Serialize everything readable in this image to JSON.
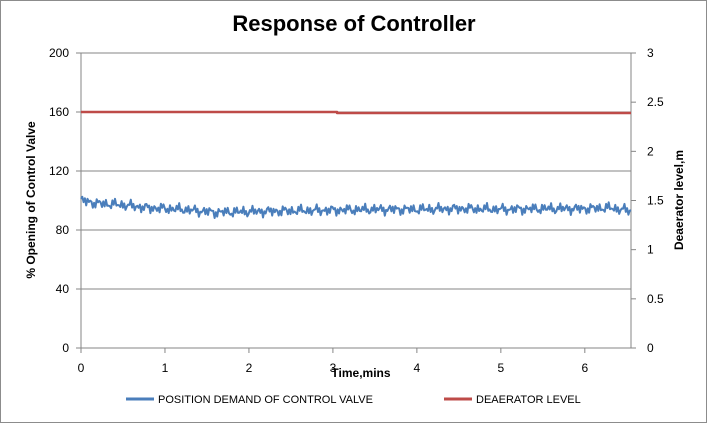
{
  "chart_data": {
    "type": "line",
    "title": "Response of Controller",
    "xlabel": "Time,mins",
    "ylabel": "% Opening of Control Valve",
    "y2label": "Deaerator level,m",
    "xlim": [
      0,
      6.55
    ],
    "ylim": [
      0,
      200
    ],
    "y2lim": [
      0,
      3
    ],
    "x_ticks": [
      "0",
      "1",
      "2",
      "3",
      "4",
      "5",
      "6"
    ],
    "y_ticks": [
      "0",
      "40",
      "80",
      "120",
      "160",
      "200"
    ],
    "y2_ticks": [
      "0",
      "0.5",
      "1",
      "1.5",
      "2",
      "2.5",
      "3"
    ],
    "gridlines": "horizontal",
    "legend_position": "bottom",
    "series": [
      {
        "name": "POSITION DEMAND OF CONTROL VALVE",
        "axis": "left",
        "color": "#4a7ebb",
        "x": [
          0,
          0.2,
          0.5,
          0.8,
          1.2,
          1.6,
          2.0,
          2.5,
          3.0,
          3.5,
          4.0,
          4.5,
          5.0,
          5.5,
          6.0,
          6.3,
          6.55
        ],
        "values": [
          100,
          98,
          97,
          95,
          94,
          92,
          92.5,
          93,
          93.5,
          94,
          94,
          94.5,
          94,
          94.5,
          94.5,
          95,
          93
        ]
      },
      {
        "name": "DEAERATOR LEVEL",
        "axis": "right",
        "color": "#be4b48",
        "x": [
          0,
          3.05,
          3.05,
          6.55
        ],
        "values": [
          2.4,
          2.4,
          2.39,
          2.39
        ]
      }
    ]
  }
}
